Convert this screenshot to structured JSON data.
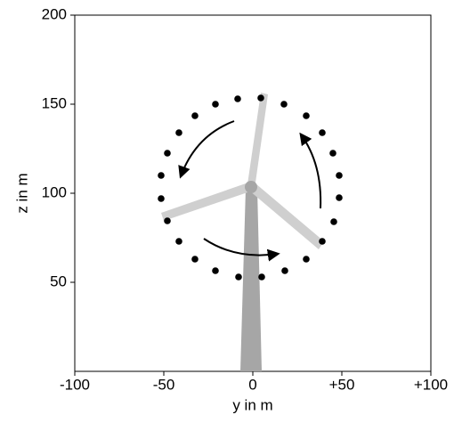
{
  "chart_data": {
    "type": "scatter",
    "xlabel": "y in m",
    "ylabel": "z in m",
    "x": [
      -8.5,
      4.5,
      17.5,
      30,
      39,
      45,
      48.5,
      48.5,
      45.5,
      39,
      30,
      18,
      5,
      -8,
      -21,
      -32.5,
      -41.5,
      -48,
      -51.5,
      -51.5,
      -48,
      -41.5,
      -32.5,
      -21
    ],
    "values": [
      153,
      153.5,
      150,
      143.5,
      134,
      122.5,
      110,
      97.5,
      84,
      73,
      63,
      56.5,
      53,
      53,
      56.5,
      63,
      73,
      84.5,
      97,
      110,
      122.5,
      134,
      143.5,
      150
    ],
    "color": "#000000",
    "xlim": [
      -100,
      100
    ],
    "ylim": [
      0,
      200
    ],
    "xticks": [
      -100,
      -50,
      0,
      {
        "value": 50,
        "label": "+50"
      },
      {
        "value": 100,
        "label": "+100"
      }
    ],
    "yticks": [
      50,
      100,
      150,
      200
    ]
  }
}
